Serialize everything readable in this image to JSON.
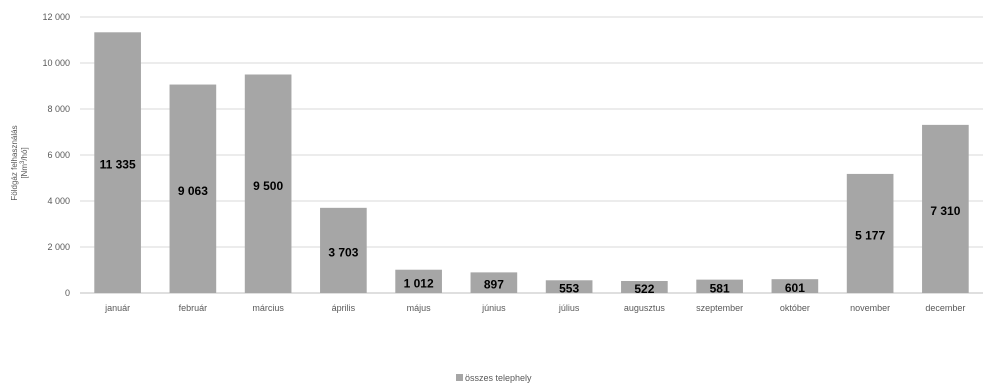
{
  "chart_data": {
    "type": "bar",
    "categories": [
      "január",
      "február",
      "március",
      "április",
      "május",
      "június",
      "július",
      "augusztus",
      "szeptember",
      "október",
      "november",
      "december"
    ],
    "series": [
      {
        "name": "összes telephely",
        "values": [
          11335,
          9063,
          9500,
          3703,
          1012,
          897,
          553,
          522,
          581,
          601,
          5177,
          7310
        ],
        "labels": [
          "11 335",
          "9 063",
          "9 500",
          "3 703",
          "1 012",
          "897",
          "553",
          "522",
          "581",
          "601",
          "5 177",
          "7 310"
        ],
        "color": "#a6a6a6"
      }
    ],
    "ylabel_line1": "Földgáz felhasználás",
    "ylabel_line2": "[Nm³/hó]",
    "ylim": [
      0,
      12000
    ],
    "yticks": [
      0,
      2000,
      4000,
      6000,
      8000,
      10000,
      12000
    ],
    "ytick_labels": [
      "0",
      "2 000",
      "4 000",
      "6 000",
      "8 000",
      "10 000",
      "12 000"
    ],
    "grid": true,
    "legend_position": "bottom",
    "gridline_color": "#d9d9d9",
    "axis_color": "#bfbfbf"
  }
}
